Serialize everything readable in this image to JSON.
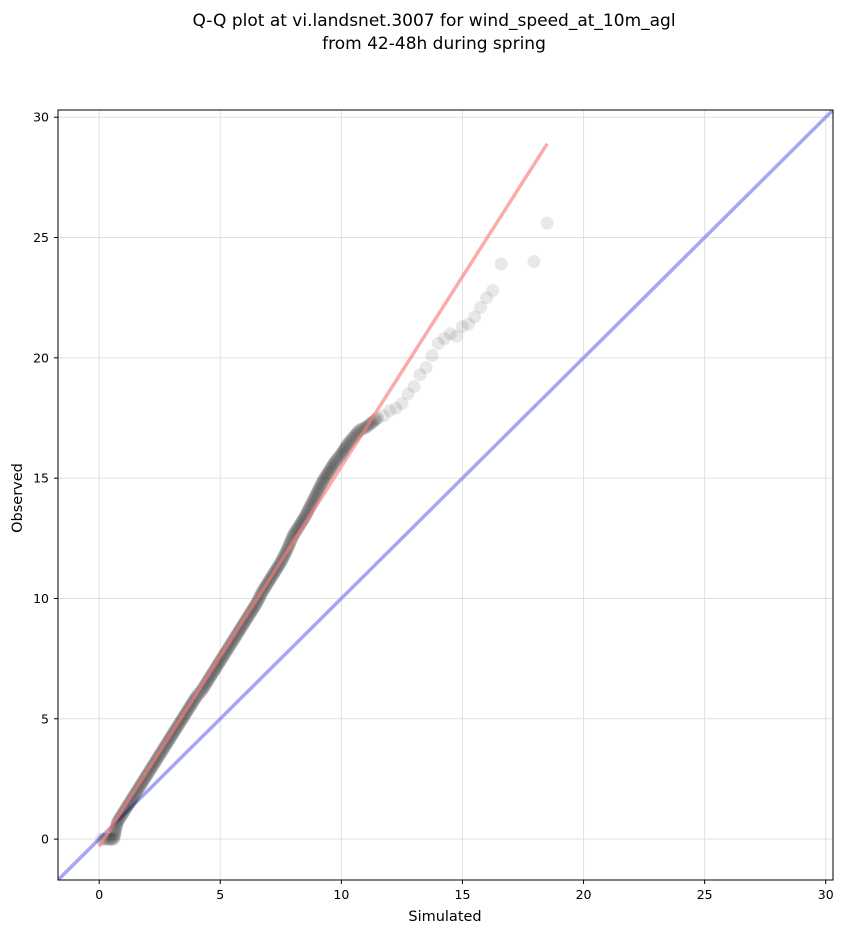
{
  "chart_data": {
    "type": "scatter",
    "title": "Q-Q plot at vi.landsnet.3007 for wind_speed_at_10m_agl",
    "subtitle": "from 42-48h during spring",
    "xlabel": "Simulated",
    "ylabel": "Observed",
    "xlim": [
      -1.7,
      30.3
    ],
    "ylim": [
      -1.7,
      30.3
    ],
    "xticks": [
      0,
      5,
      10,
      15,
      20,
      25,
      30
    ],
    "yticks": [
      0,
      5,
      10,
      15,
      20,
      25,
      30
    ],
    "grid": true,
    "colors": {
      "points": "#000000",
      "fit_line": "#f77f7f",
      "identity_line": "#8080ee",
      "grid": "#e0e0e0"
    },
    "quantiles": {
      "x": [
        0.1,
        0.25,
        0.4,
        0.5,
        0.55,
        0.6,
        0.75,
        1.0,
        1.25,
        1.5,
        1.75,
        2.0,
        2.25,
        2.5,
        2.75,
        3.0,
        3.25,
        3.5,
        3.75,
        4.0,
        4.25,
        4.5,
        4.75,
        5.0,
        5.25,
        5.5,
        5.75,
        6.0,
        6.25,
        6.5,
        6.75,
        7.0,
        7.25,
        7.5,
        7.75,
        8.0,
        8.25,
        8.5,
        8.75,
        9.0,
        9.25,
        9.5,
        9.75,
        10.0,
        10.25,
        10.5,
        10.75,
        11.0,
        11.25,
        11.5,
        11.75,
        12.0,
        12.25,
        12.5,
        12.75,
        13.0,
        13.25,
        13.5,
        13.75,
        14.0,
        14.25,
        14.5,
        14.75,
        15.0,
        15.25,
        15.5,
        15.75,
        16.0,
        16.25,
        16.6,
        17.95,
        18.5
      ],
      "y": [
        0.0,
        0.0,
        0.0,
        0.0,
        0.0,
        0.0,
        0.7,
        1.1,
        1.5,
        1.9,
        2.3,
        2.7,
        3.1,
        3.5,
        3.9,
        4.3,
        4.7,
        5.1,
        5.5,
        5.9,
        6.2,
        6.6,
        7.0,
        7.4,
        7.8,
        8.2,
        8.6,
        9.0,
        9.4,
        9.8,
        10.3,
        10.7,
        11.1,
        11.5,
        12.0,
        12.6,
        13.0,
        13.4,
        13.9,
        14.4,
        14.9,
        15.3,
        15.7,
        16.0,
        16.4,
        16.7,
        17.0,
        17.1,
        17.3,
        17.5,
        17.6,
        17.8,
        17.9,
        18.1,
        18.5,
        18.8,
        19.3,
        19.6,
        20.1,
        20.6,
        20.8,
        21.0,
        20.9,
        21.3,
        21.4,
        21.7,
        22.1,
        22.5,
        22.8,
        23.9,
        24.0,
        25.6
      ]
    },
    "fit_line": {
      "x": [
        0,
        18.5
      ],
      "y": [
        -0.3,
        28.9
      ]
    },
    "identity_line": {
      "x": [
        -1.7,
        30.3
      ],
      "y": [
        -1.7,
        30.3
      ]
    }
  }
}
